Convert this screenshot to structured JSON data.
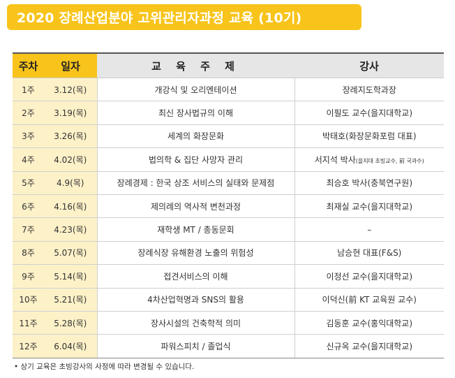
{
  "title": "2020 장례산업분야 고위관리자과정 교육 (10기)",
  "table": {
    "headers": {
      "week": "주차",
      "date": "일자",
      "topic": "교 육 주 제",
      "instructor": "강사"
    },
    "rows": [
      {
        "week": "1주",
        "date": "3.12(목)",
        "topic": "개강식 및 오리엔테이션",
        "instructor": "장례지도학과장",
        "note": ""
      },
      {
        "week": "2주",
        "date": "3.19(목)",
        "topic": "최신 장사법규의 이해",
        "instructor": "이필도 교수(을지대학교)",
        "note": ""
      },
      {
        "week": "3주",
        "date": "3.26(목)",
        "topic": "세계의 화장문화",
        "instructor": "박태호(화장문화포럼 대표)",
        "note": ""
      },
      {
        "week": "4주",
        "date": "4.02(목)",
        "topic": "법의학 & 집단 사망자 관리",
        "instructor": "서지석 박사",
        "note": "(을지대 초빙교수, 前 국과수)"
      },
      {
        "week": "5주",
        "date": "4.9(목)",
        "topic": "장례경제 : 한국 상조 서비스의 실태와 문제점",
        "instructor": "최승호 박사(충북연구원)",
        "note": ""
      },
      {
        "week": "6주",
        "date": "4.16(목)",
        "topic": "제의례의 역사적 변천과정",
        "instructor": "최재실 교수(을지대학교)",
        "note": ""
      },
      {
        "week": "7주",
        "date": "4.23(목)",
        "topic": "재학생 MT / 총동문회",
        "instructor": "–",
        "note": ""
      },
      {
        "week": "8주",
        "date": "5.07(목)",
        "topic": "장례식장 유해환경 노출의 위험성",
        "instructor": "남승현 대표(F&S)",
        "note": ""
      },
      {
        "week": "9주",
        "date": "5.14(목)",
        "topic": "접견서비스의 이해",
        "instructor": "이정선 교수(을지대학교)",
        "note": ""
      },
      {
        "week": "10주",
        "date": "5.21(목)",
        "topic": "4차산업혁명과 SNS의 활용",
        "instructor": "이덕신(前 KT 교육원 교수)",
        "note": ""
      },
      {
        "week": "11주",
        "date": "5.28(목)",
        "topic": "장사시설의 건축학적 의미",
        "instructor": "김동훈 교수(홍익대학교)",
        "note": ""
      },
      {
        "week": "12주",
        "date": "6.04(목)",
        "topic": "파워스피치 / 졸업식",
        "instructor": "신규옥 교수(을지대학교)",
        "note": ""
      }
    ]
  },
  "footnote": "• 상기 교육은 초빙강사의 사정에 따라 변경될 수 있습니다.",
  "colors": {
    "accent": "#f8c41b",
    "accent_light": "#fdf1c8",
    "header_gray": "#e6e6e6"
  }
}
